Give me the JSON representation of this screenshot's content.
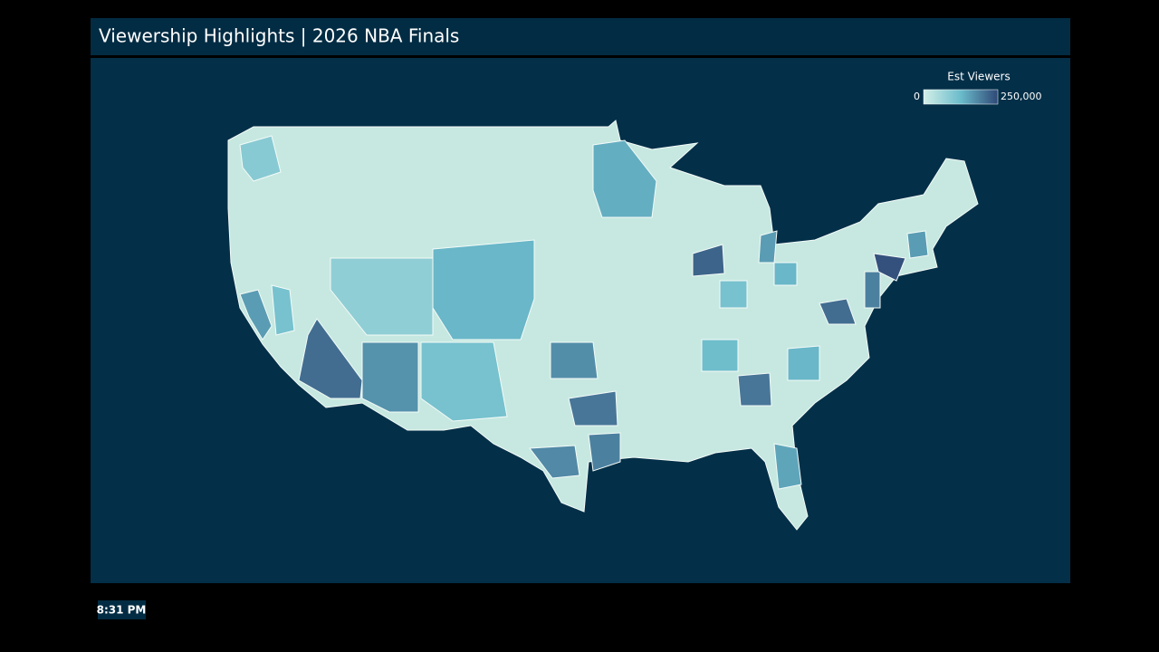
{
  "header": {
    "title": "Viewership Highlights | 2026 NBA Finals"
  },
  "map": {
    "type": "choropleth",
    "legend": {
      "title": "Est Viewers",
      "min": 0,
      "max": {
        "value": 250000,
        "label": "250,000"
      },
      "colors": [
        "#d3efe8",
        "#6bbccb",
        "#2f4876"
      ]
    },
    "land_color": "#c6e8e0",
    "region_values": [
      90000,
      160000,
      110000,
      210000,
      170000,
      130000,
      80000,
      110000,
      140000,
      175000,
      200000,
      190000,
      180000,
      220000,
      160000,
      200000,
      210000,
      190000,
      240000,
      160000,
      150000,
      130000,
      120000,
      110000,
      130000
    ]
  },
  "footer": {
    "time": "8:31 PM"
  }
}
